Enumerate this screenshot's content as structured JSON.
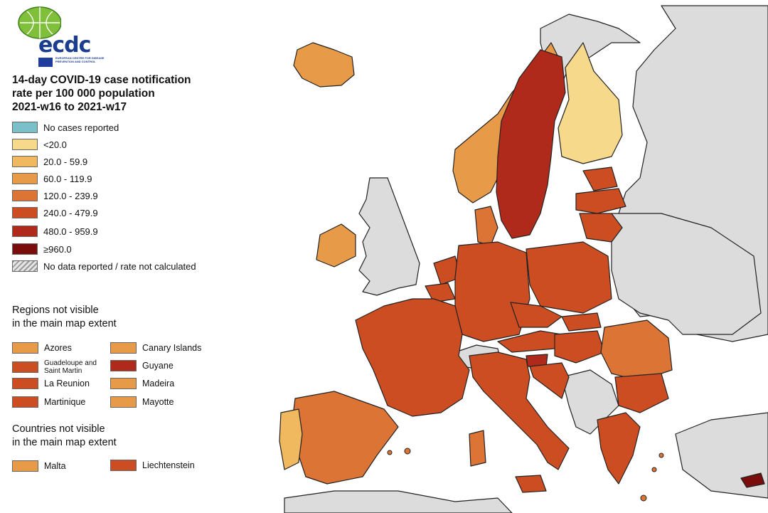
{
  "logo": {
    "brand_text": "ecdc",
    "sub_text": "EUROPEAN CENTRE FOR DISEASE PREVENTION AND CONTROL"
  },
  "title_lines": [
    "14-day COVID-19 case notification",
    "rate per 100 000 population",
    "2021-w16 to 2021-w17"
  ],
  "legend": [
    {
      "label": "No cases reported",
      "color": "#7bbfc9"
    },
    {
      "label": "<20.0",
      "color": "#f6d98a"
    },
    {
      "label": "20.0 - 59.9",
      "color": "#f0b95f"
    },
    {
      "label": "60.0 - 119.9",
      "color": "#e79a48"
    },
    {
      "label": "120.0 - 239.9",
      "color": "#db7435"
    },
    {
      "label": "240.0 - 479.9",
      "color": "#cc4d22"
    },
    {
      "label": "480.0 - 959.9",
      "color": "#b02a1c"
    },
    {
      "label": "≥960.0",
      "color": "#7a0c0c"
    },
    {
      "label": "No data reported / rate not calculated",
      "color": "hatch"
    }
  ],
  "regions_heading": [
    "Regions not visible",
    "in the main map extent"
  ],
  "regions": [
    {
      "label": "Azores",
      "color": "#e79a48"
    },
    {
      "label": "Canary Islands",
      "color": "#e79a48"
    },
    {
      "label": "Guadeloupe and Saint Martin",
      "color": "#cc4d22"
    },
    {
      "label": "Guyane",
      "color": "#b02a1c"
    },
    {
      "label": "La Reunion",
      "color": "#cc4d22"
    },
    {
      "label": "Madeira",
      "color": "#e79a48"
    },
    {
      "label": "Martinique",
      "color": "#cc4d22"
    },
    {
      "label": "Mayotte",
      "color": "#e79a48"
    }
  ],
  "countries_heading": [
    "Countries not visible",
    "in the main map extent"
  ],
  "countries": [
    {
      "label": "Malta",
      "color": "#e79a48"
    },
    {
      "label": "Liechtenstein",
      "color": "#cc4d22"
    }
  ],
  "map_colors": {
    "non_eu": "#dcdcdc",
    "sea": "#ffffff"
  }
}
